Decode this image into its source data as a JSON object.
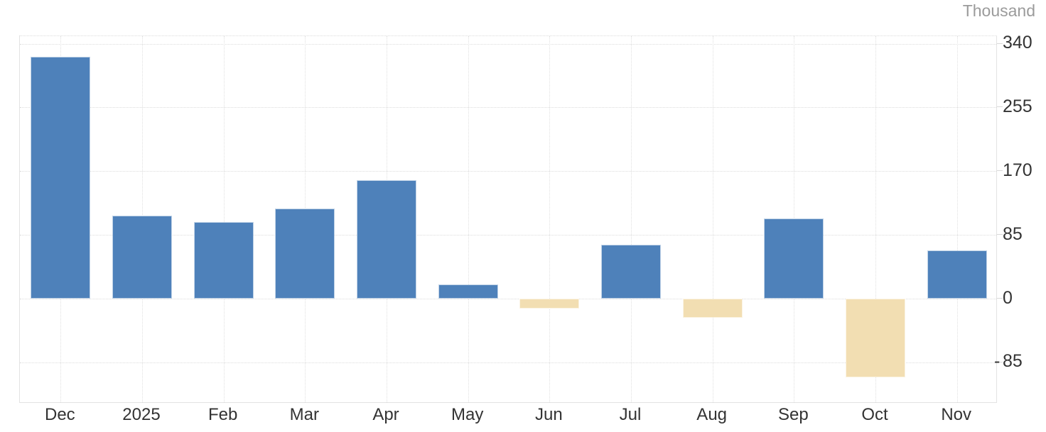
{
  "unit_label": "Thousand",
  "chart_data": {
    "type": "bar",
    "title": "",
    "unit_label": "Thousand",
    "categories": [
      "Dec",
      "2025",
      "Feb",
      "Mar",
      "Apr",
      "May",
      "Jun",
      "Jul",
      "Aug",
      "Sep",
      "Oct",
      "Nov"
    ],
    "values": [
      323,
      111,
      102,
      120,
      158,
      19,
      -13,
      72,
      -26,
      107,
      -105,
      64
    ],
    "y_ticks": [
      340,
      255,
      170,
      85,
      0,
      -85
    ],
    "ylim": [
      -140,
      350
    ],
    "grid": true,
    "legend": "none",
    "axis_side": "right",
    "colors": {
      "positive_bar": "#4e81ba",
      "negative_bar": "#f2deb2",
      "grid": "#dcdcdc",
      "axis_border": "#e3e3e3",
      "label": "#333333",
      "unit_label": "#9b9b9b",
      "background": "#ffffff"
    }
  }
}
